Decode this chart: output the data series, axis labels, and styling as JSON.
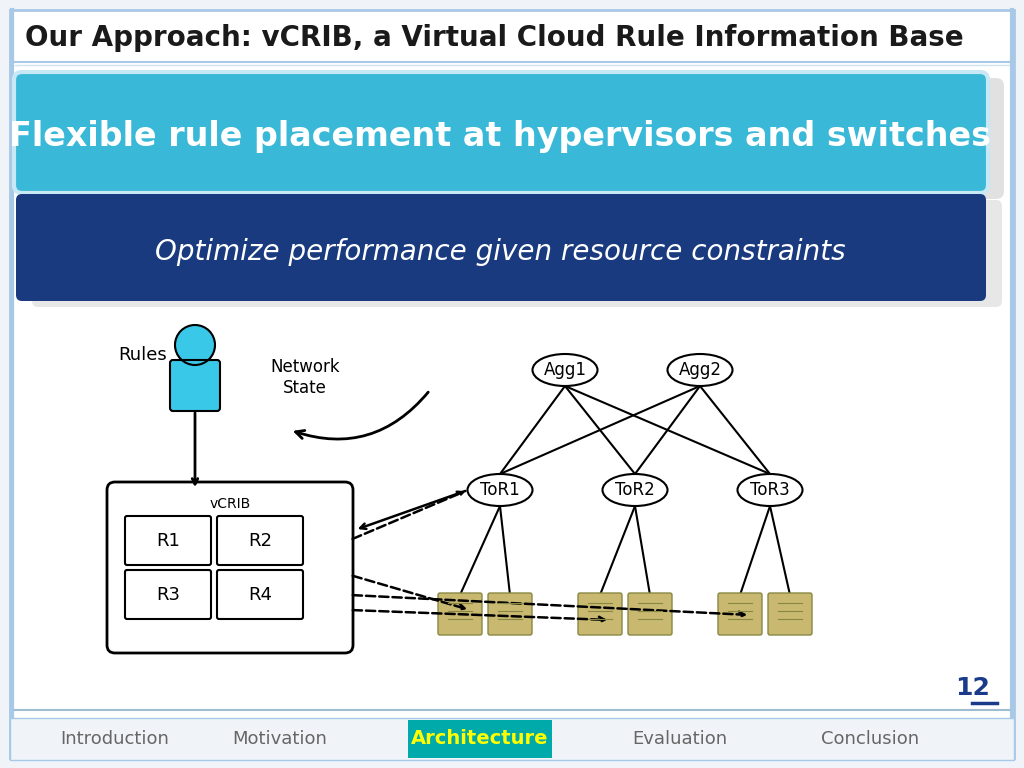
{
  "title": "Our Approach: vCRIB, a Virtual Cloud Rule Information Base",
  "title_fontsize": 20,
  "title_color": "#1a1a1a",
  "bg_color": "#f0f4f8",
  "slide_bg": "#ffffff",
  "header_border_color": "#a8c8e8",
  "banner1_text": "Flexible rule placement at hypervisors and switches",
  "banner1_fontsize": 24,
  "banner1_bg": "#3ab8d8",
  "banner1_border": "#c8e8f4",
  "banner2_text": "Optimize performance given resource constraints",
  "banner2_fontsize": 20,
  "banner2_bg": "#1a3a80",
  "nav_items": [
    "Introduction",
    "Motivation",
    "Architecture",
    "Evaluation",
    "Conclusion"
  ],
  "nav_active": "Architecture",
  "nav_active_bg": "#00aaaa",
  "nav_active_color": "#ffff00",
  "nav_inactive_color": "#666666",
  "page_num": "12",
  "footer_line_color": "#a0bcd0",
  "node_color": "#ffffff",
  "person_color": "#3ac8e8",
  "server_color": "#c8b870",
  "server_edge": "#888844"
}
